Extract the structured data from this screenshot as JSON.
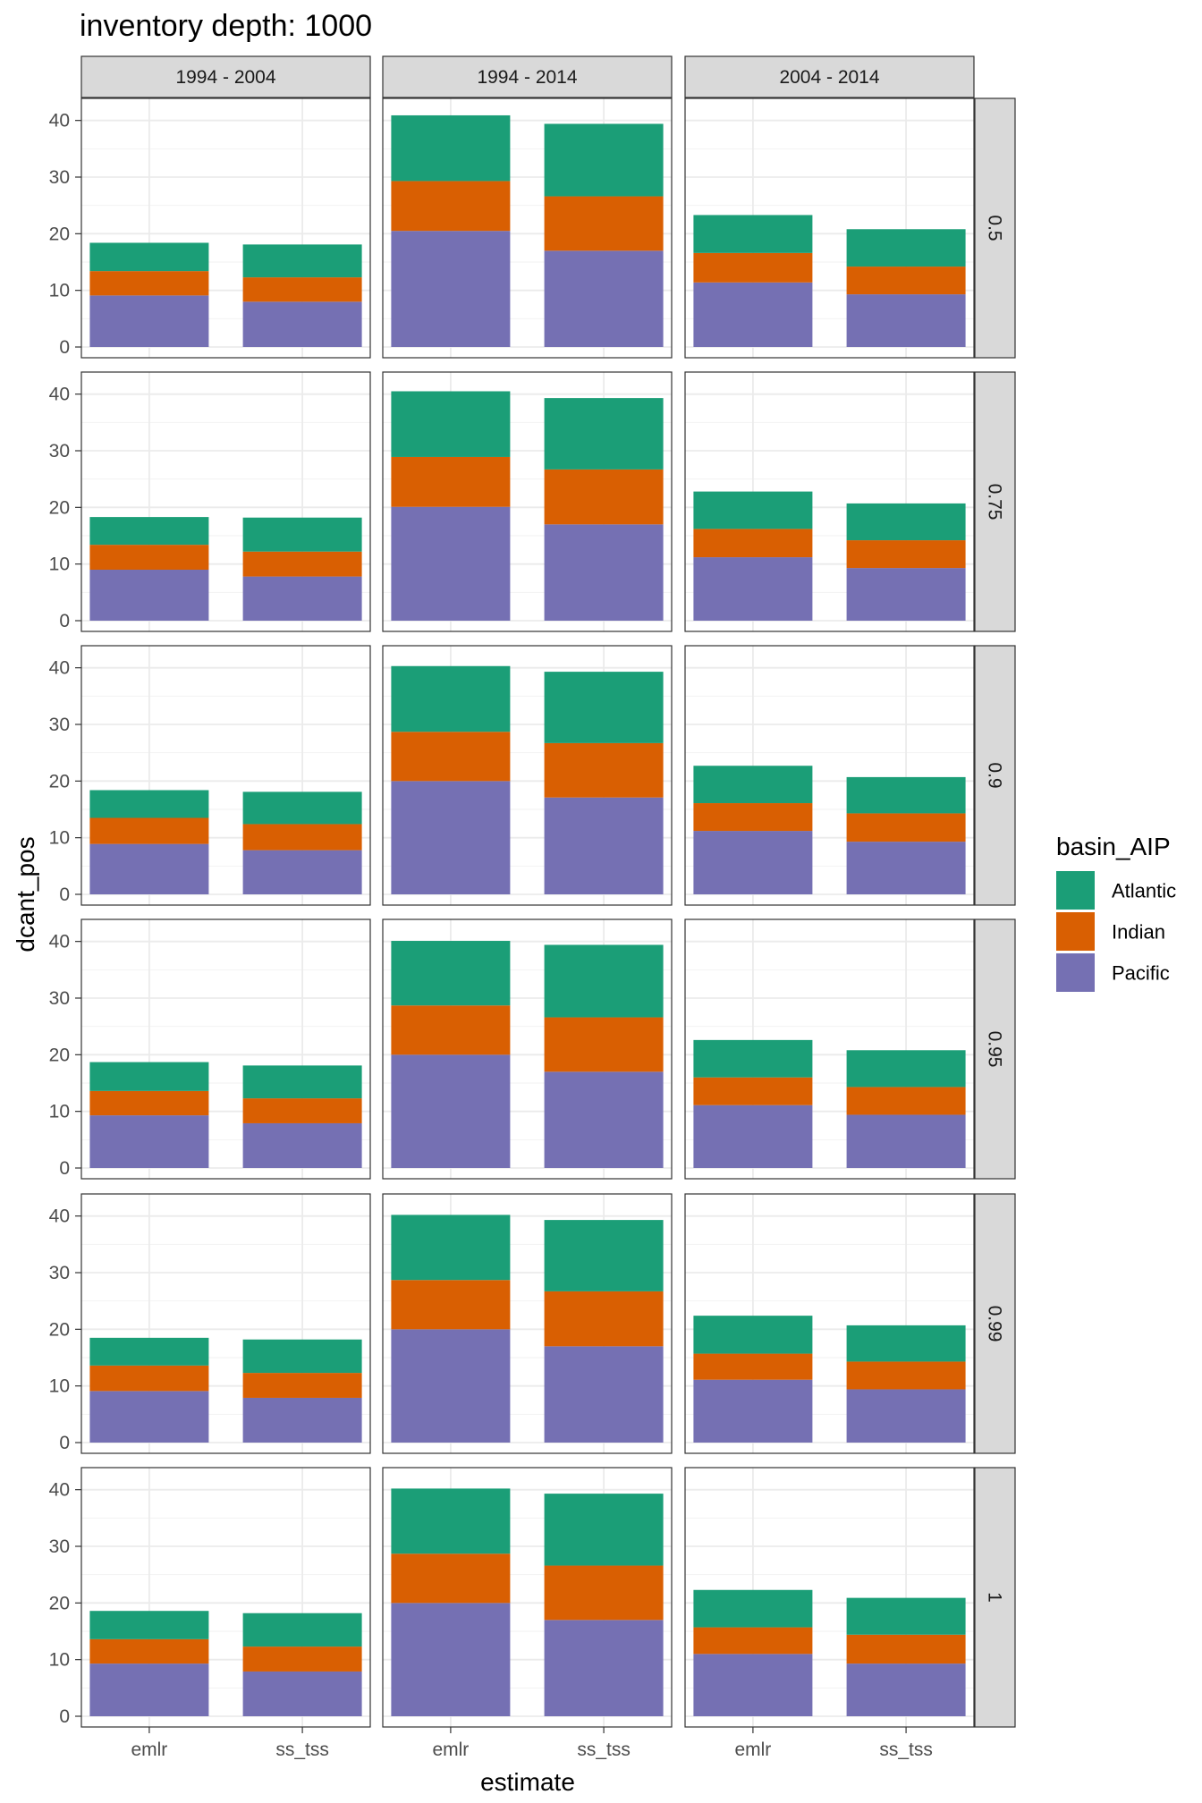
{
  "chart_data": {
    "type": "bar",
    "stacked": true,
    "title": "inventory depth: 1000",
    "xlabel": "estimate",
    "ylabel": "dcant_pos",
    "ylim": [
      0,
      42
    ],
    "yticks": [
      "0",
      "10",
      "20",
      "30",
      "40"
    ],
    "grid": true,
    "legend": {
      "title": "basin_AIP",
      "position": "right",
      "entries": [
        "Atlantic",
        "Indian",
        "Pacific"
      ]
    },
    "colors": {
      "Atlantic": "#1b9e77",
      "Indian": "#d95f02",
      "Pacific": "#7570b3"
    },
    "stack_order_bottom_to_top": [
      "Pacific",
      "Indian",
      "Atlantic"
    ],
    "categories": [
      "emlr",
      "ss_tss"
    ],
    "col_facets": [
      "1994 - 2004",
      "1994 - 2014",
      "2004 - 2014"
    ],
    "row_facets": [
      "0.5",
      "0.75",
      "0.9",
      "0.95",
      "0.99",
      "1"
    ],
    "panels": [
      [
        {
          "Pacific": [
            9.1,
            8.0
          ],
          "Indian": [
            4.3,
            4.3
          ],
          "Atlantic": [
            5.0,
            5.8
          ]
        },
        {
          "Pacific": [
            20.5,
            17.0
          ],
          "Indian": [
            8.8,
            9.6
          ],
          "Atlantic": [
            11.6,
            12.8
          ]
        },
        {
          "Pacific": [
            11.4,
            9.3
          ],
          "Indian": [
            5.2,
            4.9
          ],
          "Atlantic": [
            6.7,
            6.6
          ]
        }
      ],
      [
        {
          "Pacific": [
            9.0,
            7.8
          ],
          "Indian": [
            4.4,
            4.4
          ],
          "Atlantic": [
            4.9,
            6.0
          ]
        },
        {
          "Pacific": [
            20.1,
            17.0
          ],
          "Indian": [
            8.8,
            9.7
          ],
          "Atlantic": [
            11.6,
            12.6
          ]
        },
        {
          "Pacific": [
            11.2,
            9.3
          ],
          "Indian": [
            5.0,
            4.9
          ],
          "Atlantic": [
            6.6,
            6.5
          ]
        }
      ],
      [
        {
          "Pacific": [
            8.9,
            7.8
          ],
          "Indian": [
            4.6,
            4.6
          ],
          "Atlantic": [
            4.9,
            5.7
          ]
        },
        {
          "Pacific": [
            20.0,
            17.1
          ],
          "Indian": [
            8.7,
            9.6
          ],
          "Atlantic": [
            11.6,
            12.6
          ]
        },
        {
          "Pacific": [
            11.2,
            9.3
          ],
          "Indian": [
            4.9,
            5.0
          ],
          "Atlantic": [
            6.6,
            6.4
          ]
        }
      ],
      [
        {
          "Pacific": [
            9.3,
            7.9
          ],
          "Indian": [
            4.3,
            4.4
          ],
          "Atlantic": [
            5.1,
            5.8
          ]
        },
        {
          "Pacific": [
            20.0,
            17.0
          ],
          "Indian": [
            8.7,
            9.6
          ],
          "Atlantic": [
            11.4,
            12.8
          ]
        },
        {
          "Pacific": [
            11.1,
            9.4
          ],
          "Indian": [
            4.9,
            4.9
          ],
          "Atlantic": [
            6.6,
            6.5
          ]
        }
      ],
      [
        {
          "Pacific": [
            9.1,
            7.9
          ],
          "Indian": [
            4.5,
            4.4
          ],
          "Atlantic": [
            4.9,
            5.9
          ]
        },
        {
          "Pacific": [
            20.0,
            17.0
          ],
          "Indian": [
            8.7,
            9.7
          ],
          "Atlantic": [
            11.5,
            12.6
          ]
        },
        {
          "Pacific": [
            11.1,
            9.4
          ],
          "Indian": [
            4.6,
            4.9
          ],
          "Atlantic": [
            6.7,
            6.4
          ]
        }
      ],
      [
        {
          "Pacific": [
            9.3,
            7.9
          ],
          "Indian": [
            4.3,
            4.4
          ],
          "Atlantic": [
            5.0,
            5.9
          ]
        },
        {
          "Pacific": [
            20.0,
            17.0
          ],
          "Indian": [
            8.7,
            9.6
          ],
          "Atlantic": [
            11.5,
            12.7
          ]
        },
        {
          "Pacific": [
            11.0,
            9.3
          ],
          "Indian": [
            4.7,
            5.1
          ],
          "Atlantic": [
            6.6,
            6.5
          ]
        }
      ]
    ]
  }
}
